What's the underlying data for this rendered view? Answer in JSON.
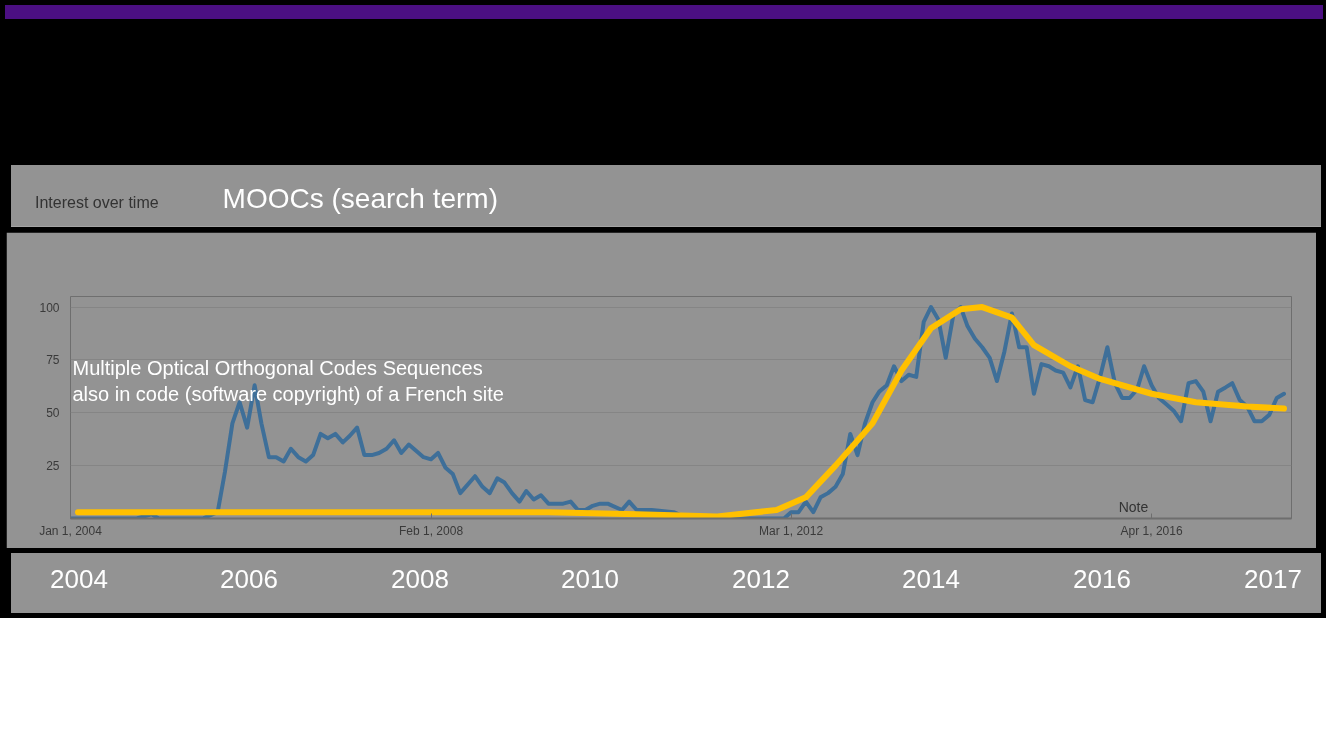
{
  "chart_data": {
    "type": "line",
    "title": "Interest over time",
    "subtitle": "MOOCs (search term)",
    "xlim": [
      "2004-01",
      "2017-11"
    ],
    "ylim": [
      0,
      105
    ],
    "xticks": [
      {
        "value": "2004-01-01",
        "label": "Jan 1, 2004"
      },
      {
        "value": "2008-02-01",
        "label": "Feb 1, 2008"
      },
      {
        "value": "2012-03-01",
        "label": "Mar 1, 2012"
      },
      {
        "value": "2016-04-01",
        "label": "Apr 1, 2016"
      }
    ],
    "yticks": [
      25,
      50,
      75,
      100
    ],
    "grid": "y",
    "marker": "none",
    "line_style": "solid",
    "annotations": [
      "Multiple Optical Orthogonal Codes Sequences\nalso in code (software copyright) of a French site",
      "2004",
      "2006",
      "2008",
      "2010",
      "2012",
      "2014",
      "2016",
      "2017",
      "Note"
    ],
    "series": [
      {
        "color": "#3e6f99",
        "x": [
          "2004-01",
          "2004-10",
          "2004-12",
          "2005-01",
          "2005-07",
          "2005-09",
          "2005-10",
          "2005-11",
          "2005-12",
          "2006-01",
          "2006-02",
          "2006-03",
          "2006-04",
          "2006-05",
          "2006-06",
          "2006-07",
          "2006-08",
          "2006-09",
          "2006-10",
          "2006-11",
          "2006-12",
          "2007-01",
          "2007-02",
          "2007-03",
          "2007-04",
          "2007-05",
          "2007-06",
          "2007-07",
          "2007-08",
          "2007-09",
          "2007-10",
          "2007-11",
          "2007-12",
          "2008-01",
          "2008-02",
          "2008-03",
          "2008-04",
          "2008-05",
          "2008-06",
          "2008-08",
          "2008-09",
          "2008-10",
          "2008-11",
          "2008-12",
          "2009-01",
          "2009-02",
          "2009-03",
          "2009-04",
          "2009-05",
          "2009-06",
          "2009-08",
          "2009-09",
          "2009-10",
          "2009-11",
          "2009-12",
          "2010-01",
          "2010-02",
          "2010-04",
          "2010-05",
          "2010-06",
          "2010-08",
          "2010-11",
          "2011-01",
          "2011-04",
          "2011-08",
          "2012-02",
          "2012-03",
          "2012-04",
          "2012-05",
          "2012-06",
          "2012-07",
          "2012-08",
          "2012-09",
          "2012-10",
          "2012-11",
          "2012-12",
          "2013-01",
          "2013-02",
          "2013-03",
          "2013-04",
          "2013-05",
          "2013-06",
          "2013-07",
          "2013-08",
          "2013-09",
          "2013-10",
          "2013-11",
          "2013-12",
          "2014-01",
          "2014-02",
          "2014-03",
          "2014-04",
          "2014-05",
          "2014-06",
          "2014-07",
          "2014-08",
          "2014-09",
          "2014-10",
          "2014-11",
          "2014-12",
          "2015-01",
          "2015-02",
          "2015-03",
          "2015-04",
          "2015-05",
          "2015-06",
          "2015-07",
          "2015-08",
          "2015-09",
          "2015-10",
          "2015-11",
          "2015-12",
          "2016-01",
          "2016-02",
          "2016-03",
          "2016-04",
          "2016-05",
          "2016-06",
          "2016-07",
          "2016-08",
          "2016-09",
          "2016-10",
          "2016-11",
          "2016-12",
          "2017-01",
          "2017-02",
          "2017-03",
          "2017-04",
          "2017-05",
          "2017-06",
          "2017-07",
          "2017-08",
          "2017-09",
          "2017-10"
        ],
        "values": [
          0,
          0,
          2,
          0,
          0,
          3,
          22,
          45,
          55,
          43,
          63,
          45,
          29,
          29,
          27,
          33,
          29,
          27,
          30,
          40,
          38,
          40,
          36,
          39,
          43,
          30,
          30,
          31,
          33,
          37,
          31,
          35,
          32,
          29,
          28,
          31,
          24,
          21,
          12,
          20,
          15,
          12,
          19,
          17,
          12,
          8,
          13,
          9,
          11,
          7,
          7,
          8,
          4,
          4,
          6,
          7,
          7,
          4,
          8,
          4,
          4,
          3,
          null,
          null,
          0,
          0,
          3,
          3,
          8,
          3,
          10,
          12,
          15,
          21,
          40,
          30,
          45,
          55,
          60,
          63,
          72,
          65,
          68,
          67,
          93,
          100,
          94,
          76,
          96,
          100,
          91,
          85,
          81,
          76,
          65,
          79,
          97,
          81,
          81,
          59,
          73,
          72,
          70,
          69,
          62,
          72,
          56,
          55,
          67,
          81,
          64,
          57,
          57,
          61,
          72,
          63,
          57,
          54,
          51,
          46,
          64,
          65,
          60,
          46,
          60,
          62,
          64,
          56,
          53,
          46,
          46,
          49,
          57,
          59
        ]
      },
      {
        "type": "line",
        "color": "#ffc000",
        "x": [
          "2004-02",
          "2009-06",
          "2010-06",
          "2011-05",
          "2012-01",
          "2012-05",
          "2012-09",
          "2013-02",
          "2013-06",
          "2013-10",
          "2014-02",
          "2014-05",
          "2014-09",
          "2014-12",
          "2015-05",
          "2015-09",
          "2016-04",
          "2016-10",
          "2017-05",
          "2017-10"
        ],
        "values": [
          3,
          3,
          2,
          1,
          4,
          10,
          25,
          45,
          70,
          90,
          99,
          100,
          95,
          82,
          72,
          66,
          59,
          55,
          53,
          52
        ]
      }
    ]
  }
}
